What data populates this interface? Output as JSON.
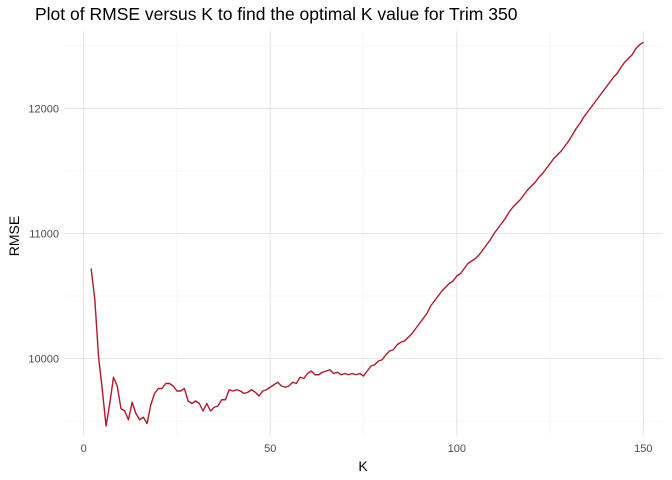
{
  "chart_data": {
    "type": "line",
    "title": "Plot of RMSE versus K to find the optimal K value for Trim 350",
    "xlabel": "K",
    "ylabel": "RMSE",
    "xlim": [
      -5,
      155
    ],
    "ylim": [
      9380,
      12620
    ],
    "x_ticks": [
      0,
      50,
      100,
      150
    ],
    "y_ticks": [
      10000,
      11000,
      12000
    ],
    "x_minor_ticks": [
      25,
      75,
      125
    ],
    "y_minor_ticks": [
      9500,
      10500,
      11500,
      12500
    ],
    "grid": true,
    "line_color": "#b2182b",
    "series": [
      {
        "x": [
          2,
          3,
          4,
          5,
          6,
          7,
          8,
          9,
          10,
          11,
          12,
          13,
          14,
          15,
          16,
          17,
          18,
          19,
          20,
          21,
          22,
          23,
          24,
          25,
          26,
          27,
          28,
          29,
          30,
          31,
          32,
          33,
          34,
          35,
          36,
          37,
          38,
          39,
          40,
          41,
          42,
          43,
          44,
          45,
          46,
          47,
          48,
          49,
          50,
          51,
          52,
          53,
          54,
          55,
          56,
          57,
          58,
          59,
          60,
          61,
          62,
          63,
          64,
          65,
          66,
          67,
          68,
          69,
          70,
          71,
          72,
          73,
          74,
          75,
          76,
          77,
          78,
          79,
          80,
          81,
          82,
          83,
          84,
          85,
          86,
          87,
          88,
          89,
          90,
          91,
          92,
          93,
          94,
          95,
          96,
          97,
          98,
          99,
          100,
          101,
          102,
          103,
          104,
          105,
          106,
          107,
          108,
          109,
          110,
          111,
          112,
          113,
          114,
          115,
          116,
          117,
          118,
          119,
          120,
          121,
          122,
          123,
          124,
          125,
          126,
          127,
          128,
          129,
          130,
          131,
          132,
          133,
          134,
          135,
          136,
          137,
          138,
          139,
          140,
          141,
          142,
          143,
          144,
          145,
          146,
          147,
          148,
          149,
          150
        ],
        "values": [
          10720,
          10470,
          10010,
          9750,
          9460,
          9640,
          9850,
          9780,
          9600,
          9580,
          9510,
          9650,
          9560,
          9510,
          9530,
          9480,
          9630,
          9720,
          9760,
          9760,
          9800,
          9800,
          9780,
          9740,
          9740,
          9760,
          9660,
          9640,
          9660,
          9640,
          9580,
          9640,
          9580,
          9610,
          9620,
          9670,
          9670,
          9750,
          9740,
          9750,
          9740,
          9720,
          9730,
          9750,
          9730,
          9700,
          9740,
          9750,
          9770,
          9790,
          9810,
          9780,
          9770,
          9780,
          9810,
          9800,
          9850,
          9840,
          9880,
          9900,
          9870,
          9870,
          9890,
          9900,
          9910,
          9880,
          9890,
          9870,
          9880,
          9870,
          9880,
          9870,
          9880,
          9860,
          9900,
          9940,
          9950,
          9980,
          9990,
          10030,
          10060,
          10070,
          10110,
          10130,
          10140,
          10170,
          10200,
          10240,
          10280,
          10320,
          10360,
          10420,
          10460,
          10500,
          10540,
          10570,
          10600,
          10620,
          10660,
          10680,
          10720,
          10760,
          10780,
          10800,
          10830,
          10870,
          10910,
          10950,
          11000,
          11040,
          11080,
          11120,
          11170,
          11210,
          11240,
          11270,
          11310,
          11350,
          11380,
          11410,
          11450,
          11480,
          11520,
          11560,
          11600,
          11630,
          11660,
          11700,
          11740,
          11790,
          11840,
          11880,
          11930,
          11970,
          12010,
          12050,
          12090,
          12130,
          12170,
          12210,
          12250,
          12280,
          12330,
          12370,
          12400,
          12430,
          12480,
          12510,
          12530
        ]
      }
    ]
  }
}
